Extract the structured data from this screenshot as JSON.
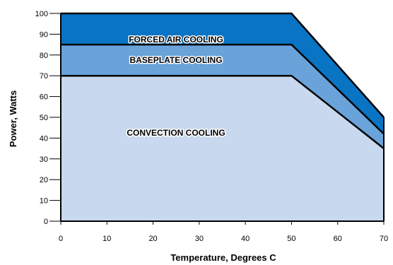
{
  "chart_data": {
    "type": "area",
    "title": "",
    "xlabel": "Temperature, Degrees C",
    "ylabel": "Power, Watts",
    "xlim": [
      0,
      70
    ],
    "ylim": [
      0,
      100
    ],
    "x_ticks": [
      0,
      10,
      20,
      30,
      40,
      50,
      60,
      70
    ],
    "y_ticks": [
      0,
      10,
      20,
      30,
      40,
      50,
      60,
      70,
      80,
      90,
      100
    ],
    "grid": false,
    "legend": "none",
    "series": [
      {
        "name": "FORCED AIR COOLING",
        "color": "#0a74c4",
        "x": [
          0,
          50,
          70
        ],
        "y": [
          100,
          100,
          50
        ]
      },
      {
        "name": "BASEPLATE COOLING",
        "color": "#6aa3d9",
        "x": [
          0,
          50,
          70
        ],
        "y": [
          85,
          85,
          42
        ]
      },
      {
        "name": "CONVECTION COOLING",
        "color": "#c8d8ee",
        "x": [
          0,
          50,
          70
        ],
        "y": [
          70,
          70,
          35
        ]
      }
    ]
  }
}
